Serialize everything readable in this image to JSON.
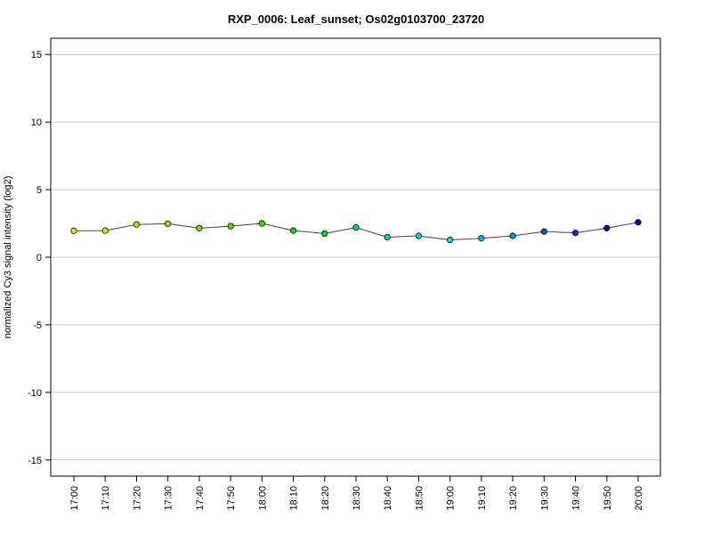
{
  "chart_data": {
    "type": "line",
    "title": "RXP_0006: Leaf_sunset; Os02g0103700_23720",
    "xlabel": "",
    "ylabel": "normalized Cy3 signal intensity (log2)",
    "categories": [
      "17:00",
      "17:10",
      "17:20",
      "17:30",
      "17:40",
      "17:50",
      "18:00",
      "18:10",
      "18:20",
      "18:30",
      "18:40",
      "18:50",
      "19:00",
      "19:10",
      "19:20",
      "19:30",
      "19:40",
      "19:50",
      "20:00"
    ],
    "series": [
      {
        "values": [
          1.95,
          1.97,
          2.42,
          2.48,
          2.15,
          2.3,
          2.5,
          1.97,
          1.75,
          2.2,
          1.48,
          1.58,
          1.28,
          1.4,
          1.58,
          1.9,
          1.8,
          2.15,
          2.58
        ],
        "point_colors": [
          "#e8e800",
          "#d2e800",
          "#b4e600",
          "#96e600",
          "#78e000",
          "#5ad800",
          "#3cd800",
          "#1ed800",
          "#00d83c",
          "#00d878",
          "#00d8b4",
          "#00d8d2",
          "#00d8f0",
          "#00b4f0",
          "#0096e6",
          "#0064d2",
          "#0032be",
          "#0014b4",
          "#0000a0"
        ]
      }
    ],
    "ylim": [
      -16.2,
      16.2
    ],
    "yticks": [
      -15,
      -10,
      -5,
      0,
      5,
      10,
      15
    ],
    "grid": "horizontal",
    "line_color": "#404040",
    "gridline_color": "#c8c8c8"
  }
}
